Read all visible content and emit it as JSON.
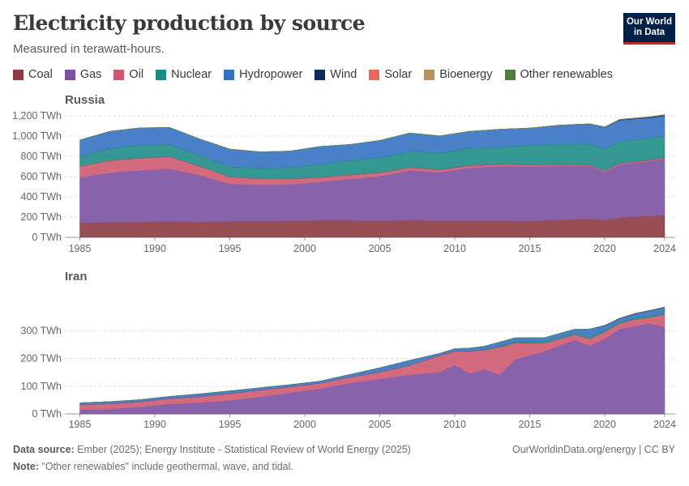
{
  "title": "Electricity production by source",
  "subtitle": "Measured in terawatt-hours.",
  "logo": {
    "line1": "Our World",
    "line2": "in Data",
    "bg": "#002147",
    "accent": "#ce261e"
  },
  "legend": [
    {
      "name": "Coal",
      "color": "#8c3b43"
    },
    {
      "name": "Gas",
      "color": "#7b52a3"
    },
    {
      "name": "Oil",
      "color": "#cf5a6f"
    },
    {
      "name": "Nuclear",
      "color": "#1e8c86"
    },
    {
      "name": "Hydropower",
      "color": "#3572c2"
    },
    {
      "name": "Wind",
      "color": "#0f2a5e"
    },
    {
      "name": "Solar",
      "color": "#e8685a"
    },
    {
      "name": "Bioenergy",
      "color": "#b8925a"
    },
    {
      "name": "Other renewables",
      "color": "#4f7f3a"
    }
  ],
  "footer": {
    "source_label": "Data source:",
    "source_text": "Ember (2025); Energy Institute - Statistical Review of World Energy (2025)",
    "note_label": "Note:",
    "note_text": "\"Other renewables\" include geothermal, wave, and tidal.",
    "right": "OurWorldinData.org/energy | CC BY"
  },
  "chart_data": [
    {
      "type": "area",
      "title": "Russia",
      "stacked": true,
      "ylim": [
        0,
        1200
      ],
      "yticks": [
        0,
        200,
        400,
        600,
        800,
        1000,
        1200
      ],
      "ytick_labels": [
        "0 TWh",
        "200 TWh",
        "400 TWh",
        "600 TWh",
        "800 TWh",
        "1,000 TWh",
        "1,200 TWh"
      ],
      "xticks": [
        1985,
        1990,
        1995,
        2000,
        2005,
        2010,
        2015,
        2020,
        2024
      ],
      "x": [
        1985,
        1987,
        1989,
        1991,
        1993,
        1995,
        1997,
        1999,
        2001,
        2003,
        2005,
        2007,
        2009,
        2011,
        2013,
        2015,
        2017,
        2019,
        2020,
        2021,
        2023,
        2024
      ],
      "series": [
        {
          "name": "Coal",
          "values": [
            140,
            145,
            150,
            155,
            150,
            155,
            158,
            160,
            165,
            165,
            160,
            168,
            160,
            163,
            160,
            158,
            170,
            180,
            170,
            190,
            210,
            215
          ]
        },
        {
          "name": "Gas",
          "values": [
            450,
            490,
            510,
            520,
            460,
            370,
            360,
            360,
            380,
            410,
            440,
            490,
            480,
            520,
            540,
            540,
            530,
            520,
            475,
            525,
            540,
            555
          ]
        },
        {
          "name": "Oil",
          "values": [
            110,
            120,
            120,
            120,
            90,
            70,
            60,
            55,
            45,
            40,
            35,
            30,
            25,
            25,
            20,
            15,
            15,
            12,
            12,
            12,
            12,
            12
          ]
        },
        {
          "name": "Nuclear",
          "values": [
            100,
            120,
            130,
            120,
            110,
            100,
            105,
            115,
            130,
            145,
            150,
            160,
            165,
            172,
            165,
            195,
            205,
            210,
            215,
            220,
            218,
            218
          ]
        },
        {
          "name": "Hydropower",
          "values": [
            160,
            170,
            170,
            168,
            160,
            175,
            160,
            160,
            175,
            155,
            170,
            180,
            170,
            165,
            180,
            168,
            185,
            195,
            212,
            210,
            200,
            200
          ]
        },
        {
          "name": "Wind",
          "values": [
            0,
            0,
            0,
            0,
            0,
            0,
            0,
            0,
            0,
            0,
            0,
            0,
            0,
            0,
            0,
            0,
            0,
            1,
            2,
            4,
            6,
            7
          ]
        },
        {
          "name": "Solar",
          "values": [
            0,
            0,
            0,
            0,
            0,
            0,
            0,
            0,
            0,
            0,
            0,
            0,
            0,
            0,
            0,
            1,
            1,
            1,
            2,
            2,
            2,
            2
          ]
        },
        {
          "name": "Bioenergy",
          "values": [
            2,
            2,
            2,
            2,
            2,
            2,
            2,
            2,
            2,
            2,
            2,
            2,
            2,
            2,
            2,
            2,
            2,
            2,
            2,
            2,
            2,
            2
          ]
        },
        {
          "name": "Other renewables",
          "values": [
            0,
            0,
            0,
            0,
            0,
            0,
            0,
            0,
            1,
            1,
            1,
            1,
            1,
            1,
            1,
            1,
            1,
            1,
            1,
            1,
            1,
            1
          ]
        }
      ]
    },
    {
      "type": "area",
      "title": "Iran",
      "stacked": true,
      "ylim": [
        0,
        400
      ],
      "yticks": [
        0,
        100,
        200,
        300
      ],
      "ytick_labels": [
        "0 TWh",
        "100 TWh",
        "200 TWh",
        "300 TWh"
      ],
      "xticks": [
        1985,
        1990,
        1995,
        2000,
        2005,
        2010,
        2015,
        2020,
        2024
      ],
      "x": [
        1985,
        1987,
        1989,
        1991,
        1993,
        1995,
        1997,
        1999,
        2001,
        2003,
        2005,
        2007,
        2009,
        2010,
        2011,
        2012,
        2013,
        2014,
        2016,
        2018,
        2019,
        2020,
        2021,
        2022,
        2023,
        2024
      ],
      "series": [
        {
          "name": "Coal",
          "values": [
            0,
            0,
            0,
            0,
            0,
            0,
            0,
            0,
            0,
            0,
            0,
            0,
            0,
            0,
            0,
            0,
            0,
            0,
            0,
            0,
            0,
            0,
            0,
            0,
            0,
            0
          ]
        },
        {
          "name": "Gas",
          "values": [
            15,
            16,
            25,
            35,
            40,
            48,
            60,
            75,
            90,
            110,
            125,
            140,
            150,
            175,
            145,
            160,
            140,
            195,
            225,
            265,
            245,
            270,
            305,
            315,
            325,
            312
          ]
        },
        {
          "name": "Oil",
          "values": [
            18,
            20,
            18,
            20,
            22,
            25,
            25,
            22,
            20,
            22,
            25,
            35,
            60,
            50,
            80,
            70,
            100,
            60,
            30,
            20,
            25,
            25,
            20,
            25,
            22,
            45
          ]
        },
        {
          "name": "Nuclear",
          "values": [
            0,
            0,
            0,
            0,
            0,
            0,
            0,
            0,
            0,
            0,
            0,
            0,
            0,
            0,
            0,
            2,
            4,
            4,
            6,
            6,
            6,
            6,
            6,
            6,
            6,
            6
          ]
        },
        {
          "name": "Hydropower",
          "values": [
            7,
            8,
            8,
            8,
            10,
            10,
            9,
            8,
            8,
            10,
            16,
            18,
            8,
            10,
            12,
            12,
            15,
            15,
            14,
            14,
            30,
            16,
            12,
            14,
            18,
            20
          ]
        },
        {
          "name": "Wind",
          "values": [
            0,
            0,
            0,
            0,
            0,
            0,
            0,
            0,
            0,
            0,
            0,
            0,
            0,
            0,
            0,
            0,
            0,
            0,
            0,
            0,
            0,
            1,
            1,
            1,
            1,
            1
          ]
        },
        {
          "name": "Solar",
          "values": [
            0,
            0,
            0,
            0,
            0,
            0,
            0,
            0,
            0,
            0,
            0,
            0,
            0,
            0,
            0,
            0,
            0,
            0,
            0,
            0,
            0,
            1,
            1,
            1,
            1,
            1
          ]
        },
        {
          "name": "Bioenergy",
          "values": [
            0,
            0,
            0,
            0,
            0,
            0,
            0,
            0,
            0,
            0,
            0,
            0,
            0,
            0,
            0,
            0,
            0,
            0,
            0,
            0,
            0,
            0,
            0,
            0,
            0,
            0
          ]
        },
        {
          "name": "Other renewables",
          "values": [
            0,
            0,
            0,
            0,
            0,
            0,
            0,
            0,
            0,
            0,
            0,
            0,
            0,
            0,
            0,
            0,
            0,
            0,
            0,
            0,
            0,
            0,
            0,
            0,
            0,
            0
          ]
        }
      ]
    }
  ]
}
